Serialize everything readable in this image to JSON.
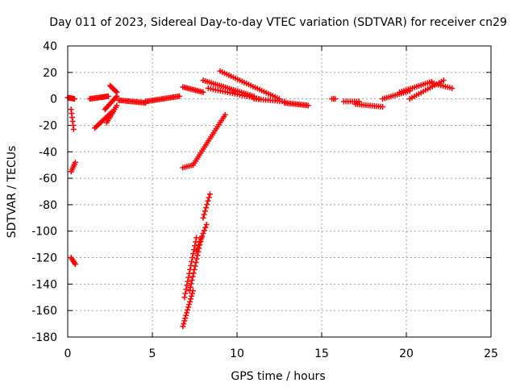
{
  "chart_data": {
    "type": "scatter",
    "title": "Day 011 of 2023, Sidereal Day-to-day VTEC variation (SDTVAR) for receiver cn29",
    "xlabel": "GPS time / hours",
    "ylabel": "SDTVAR / TECUs",
    "xlim": [
      0,
      25
    ],
    "ylim": [
      -180,
      40
    ],
    "xticks": [
      0,
      5,
      10,
      15,
      20,
      25
    ],
    "yticks": [
      -180,
      -160,
      -140,
      -120,
      -100,
      -80,
      -60,
      -40,
      -20,
      0,
      20,
      40
    ],
    "grid": true,
    "marker": "+",
    "series_color": "#ff0000",
    "segments": [
      {
        "x": [
          0.0,
          0.4
        ],
        "y": [
          1,
          0
        ],
        "n": 8
      },
      {
        "x": [
          0.2,
          0.35
        ],
        "y": [
          -8,
          -23
        ],
        "n": 6
      },
      {
        "x": [
          0.2,
          0.45
        ],
        "y": [
          -55,
          -48
        ],
        "n": 6
      },
      {
        "x": [
          0.2,
          0.45
        ],
        "y": [
          -120,
          -125
        ],
        "n": 6
      },
      {
        "x": [
          1.3,
          2.4
        ],
        "y": [
          0,
          2
        ],
        "n": 16
      },
      {
        "x": [
          1.6,
          2.6
        ],
        "y": [
          -22,
          -10
        ],
        "n": 14
      },
      {
        "x": [
          2.2,
          2.9
        ],
        "y": [
          -8,
          2
        ],
        "n": 12
      },
      {
        "x": [
          2.3,
          2.9
        ],
        "y": [
          -18,
          -5
        ],
        "n": 10
      },
      {
        "x": [
          2.5,
          2.9
        ],
        "y": [
          10,
          5
        ],
        "n": 8
      },
      {
        "x": [
          3.0,
          4.6
        ],
        "y": [
          -1,
          -3
        ],
        "n": 20
      },
      {
        "x": [
          4.6,
          6.6
        ],
        "y": [
          -2,
          2
        ],
        "n": 24
      },
      {
        "x": [
          6.8,
          7.4
        ],
        "y": [
          -172,
          -145
        ],
        "n": 14
      },
      {
        "x": [
          6.9,
          7.6
        ],
        "y": [
          -150,
          -105
        ],
        "n": 16
      },
      {
        "x": [
          7.2,
          7.9
        ],
        "y": [
          -145,
          -105
        ],
        "n": 16
      },
      {
        "x": [
          7.6,
          8.2
        ],
        "y": [
          -115,
          -95
        ],
        "n": 10
      },
      {
        "x": [
          8.0,
          8.4
        ],
        "y": [
          -90,
          -72
        ],
        "n": 8
      },
      {
        "x": [
          6.8,
          7.4
        ],
        "y": [
          -52,
          -50
        ],
        "n": 6
      },
      {
        "x": [
          7.4,
          9.3
        ],
        "y": [
          -50,
          -12
        ],
        "n": 26
      },
      {
        "x": [
          6.8,
          8.0
        ],
        "y": [
          9,
          5
        ],
        "n": 14
      },
      {
        "x": [
          8.0,
          11.0
        ],
        "y": [
          14,
          2
        ],
        "n": 26
      },
      {
        "x": [
          9.0,
          12.5
        ],
        "y": [
          21,
          0
        ],
        "n": 28
      },
      {
        "x": [
          8.3,
          11.3
        ],
        "y": [
          8,
          0
        ],
        "n": 22
      },
      {
        "x": [
          11.0,
          12.8
        ],
        "y": [
          0,
          -2
        ],
        "n": 14
      },
      {
        "x": [
          12.8,
          14.2
        ],
        "y": [
          -3,
          -5
        ],
        "n": 16
      },
      {
        "x": [
          15.6,
          15.8
        ],
        "y": [
          0,
          0
        ],
        "n": 3
      },
      {
        "x": [
          16.3,
          17.2
        ],
        "y": [
          -2,
          -2
        ],
        "n": 8
      },
      {
        "x": [
          17.0,
          18.6
        ],
        "y": [
          -4,
          -6
        ],
        "n": 14
      },
      {
        "x": [
          18.6,
          20.2
        ],
        "y": [
          0,
          6
        ],
        "n": 14
      },
      {
        "x": [
          19.6,
          21.5
        ],
        "y": [
          5,
          13
        ],
        "n": 16
      },
      {
        "x": [
          20.2,
          22.2
        ],
        "y": [
          0,
          14
        ],
        "n": 16
      },
      {
        "x": [
          21.5,
          22.7
        ],
        "y": [
          12,
          8
        ],
        "n": 10
      }
    ]
  }
}
